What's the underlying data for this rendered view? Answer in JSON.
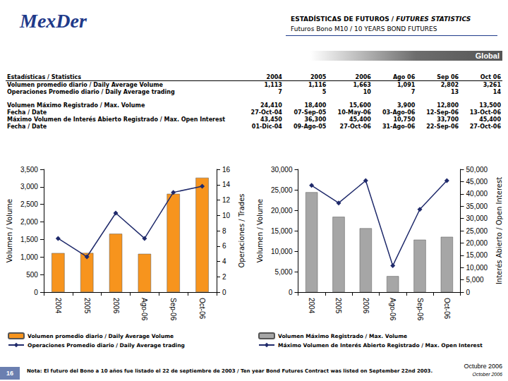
{
  "header": {
    "logo": "MexDer",
    "title": [
      "ESTADÍSTICAS DE FUTUROS / ",
      "FUTURES STATISTICS"
    ],
    "subtitle": "Futuros Bono M10 / 10 YEARS BOND FUTURES",
    "banner": "Global"
  },
  "table": {
    "header": [
      "Estadísticas / Statistics",
      "2004",
      "2005",
      "2006",
      "Ago 06",
      "Sep 06",
      "Oct 06"
    ],
    "rows": [
      [
        "Volumen promedio diario / Daily Average Volume",
        "1,113",
        "1,116",
        "1,663",
        "1,091",
        "2,802",
        "3,261"
      ],
      [
        "Operaciones Promedio diario / Daily Average trading",
        "7",
        "5",
        "10",
        "7",
        "13",
        "14"
      ],
      [
        "Volumen Máximo Registrado / Max. Volume",
        "24,410",
        "18,400",
        "15,600",
        "3,900",
        "12,800",
        "13,500"
      ],
      [
        "Fecha / Date",
        "27-Oct-04",
        "07-Sep-05",
        "10-May-06",
        "03-Ago-06",
        "12-Sep-06",
        "13-Oct-06"
      ],
      [
        "Máximo Volumen de Interés Abierto Registrado / Max. Open Interest",
        "43,450",
        "36,300",
        "45,400",
        "10,750",
        "33,700",
        "45,400"
      ],
      [
        "Fecha / Date",
        "01-Dic-04",
        "09-Ago-05",
        "27-Oct-06",
        "31-Ago-06",
        "22-Sep-06",
        "27-Oct-06"
      ]
    ]
  },
  "footer": {
    "page": "16",
    "note": "Nota: El futuro del Bono a 10 años fue listado el 22 de septiembre de 2003 / Ten year Bond Futures Contract was listed on September 22nd 2003.",
    "date_es": "Octubre 2006",
    "date_en": "October 2006"
  },
  "chart_data": [
    {
      "type": "bar",
      "categories": [
        "2004",
        "2005",
        "2006",
        "Ago-06",
        "Sep-06",
        "Oct-06"
      ],
      "ylabel": "Volumen / Volume",
      "y2label": "Operaciones / Trades",
      "ylim": [
        0,
        3500
      ],
      "yticks": [
        0,
        {
          "value": 500,
          "label": "500"
        },
        {
          "value": 1000,
          "label": "1,000"
        },
        {
          "value": 1500,
          "label": "1,500"
        },
        {
          "value": 2000,
          "label": "2,000"
        },
        {
          "value": 2500,
          "label": "2,500"
        },
        {
          "value": 3000,
          "label": "3,000"
        },
        {
          "value": 3500,
          "label": "3,500"
        }
      ],
      "y2lim": [
        0,
        16
      ],
      "y2ticks": [
        0,
        2,
        4,
        6,
        8,
        10,
        12,
        14,
        16
      ],
      "grid": false,
      "legend": "bottom",
      "series": [
        {
          "name": "Volumen promedio diario / Daily Average Volume",
          "type": "bar",
          "color": "#f7941d",
          "values": [
            1113,
            1116,
            1663,
            1091,
            2802,
            3261
          ]
        },
        {
          "name": "Operaciones Promedio diario / Daily Average trading",
          "type": "line",
          "axis": "y2",
          "color": "#1f2a6b",
          "marker": "diamond",
          "values": [
            7,
            4.6,
            10.3,
            7,
            13,
            13.8
          ]
        }
      ]
    },
    {
      "type": "bar",
      "categories": [
        "2004",
        "2005",
        "2006",
        "Ago-06",
        "Sep-06",
        "Oct-06"
      ],
      "ylabel": "Volumen / Volume",
      "y2label": "Interés Abierto / Open Interest",
      "ylim": [
        0,
        30000
      ],
      "yticks": [
        0,
        {
          "value": 5000,
          "label": "5,000"
        },
        {
          "value": 10000,
          "label": "10,000"
        },
        {
          "value": 15000,
          "label": "15,000"
        },
        {
          "value": 20000,
          "label": "20,000"
        },
        {
          "value": 25000,
          "label": "25,000"
        },
        {
          "value": 30000,
          "label": "30,000"
        }
      ],
      "y2lim": [
        0,
        50000
      ],
      "y2ticks": [
        0,
        {
          "value": 5000,
          "label": "5,000"
        },
        {
          "value": 10000,
          "label": "10,000"
        },
        {
          "value": 15000,
          "label": "15,000"
        },
        {
          "value": 20000,
          "label": "20,000"
        },
        {
          "value": 25000,
          "label": "25,000"
        },
        {
          "value": 30000,
          "label": "30,000"
        },
        {
          "value": 35000,
          "label": "35,000"
        },
        {
          "value": 40000,
          "label": "40,000"
        },
        {
          "value": 45000,
          "label": "45,000"
        },
        {
          "value": 50000,
          "label": "50,000"
        }
      ],
      "grid": false,
      "legend": "bottom",
      "series": [
        {
          "name": "Volumen Máximo Registrado / Max. Volume",
          "type": "bar",
          "color": "#a6a6a6",
          "values": [
            24410,
            18400,
            15600,
            3900,
            12800,
            13500
          ]
        },
        {
          "name": "Máximo Volumen de Interés Abierto Registrado / Max. Open Interest",
          "type": "line",
          "axis": "y2",
          "color": "#1f2a6b",
          "marker": "diamond",
          "values": [
            43450,
            36300,
            45400,
            10750,
            33700,
            45400
          ]
        }
      ]
    }
  ]
}
